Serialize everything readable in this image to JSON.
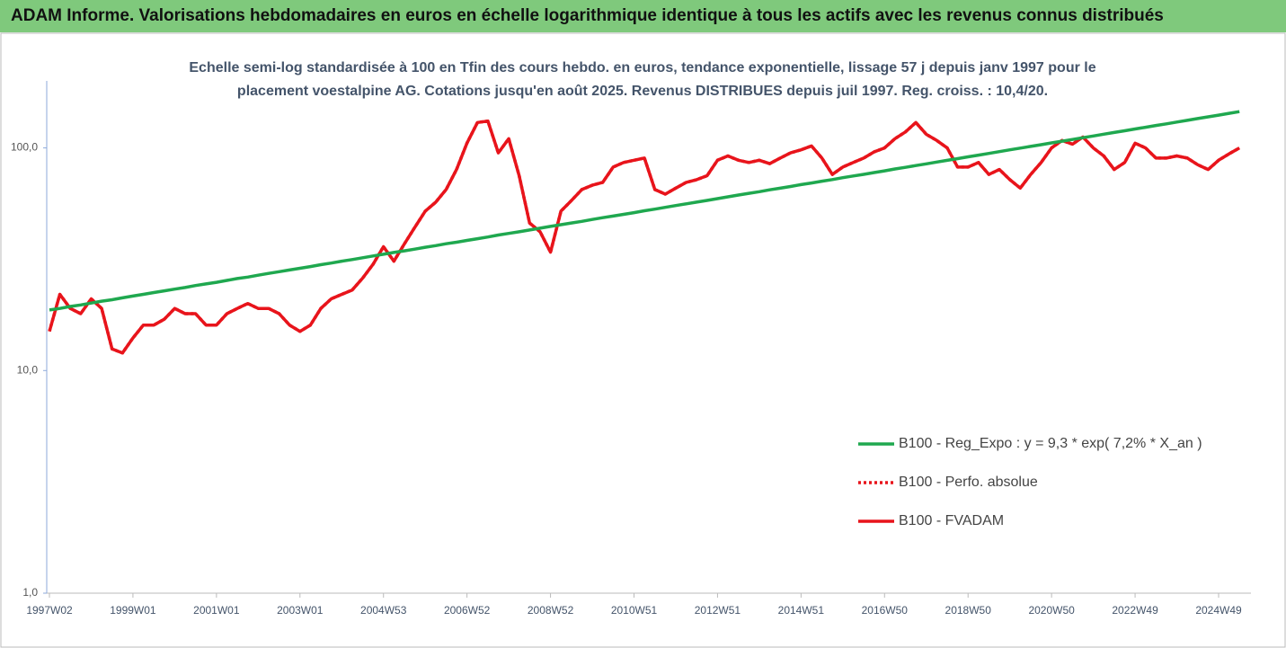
{
  "chart_data": {
    "type": "line",
    "title": "ADAM Informe. Valorisations hebdomadaires en euros en échelle logarithmique identique à tous les actifs avec les revenus connus distribués",
    "subtitle": [
      "Echelle semi-log standardisée à 100 en Tfin des cours hebdo. en euros, tendance exponentielle, lissage 57 j depuis janv 1997 pour le",
      "placement voestalpine AG. Cotations jusqu'en août 2025. Revenus DISTRIBUES depuis juil 1997. Reg. croiss. : 10,4/20."
    ],
    "log_scale": true,
    "grid": false,
    "legend": "right",
    "ylim": [
      1,
      200
    ],
    "yticks": [
      {
        "value": 1,
        "label": "1,0"
      },
      {
        "value": 10,
        "label": "10,0"
      },
      {
        "value": 100,
        "label": "100,0"
      }
    ],
    "categories": [
      "1997W02",
      null,
      null,
      null,
      null,
      null,
      null,
      null,
      "1999W01",
      null,
      null,
      null,
      null,
      null,
      null,
      null,
      "2001W01",
      null,
      null,
      null,
      null,
      null,
      null,
      null,
      "2003W01",
      null,
      null,
      null,
      null,
      null,
      null,
      null,
      "2004W53",
      null,
      null,
      null,
      null,
      null,
      null,
      null,
      "2006W52",
      null,
      null,
      null,
      null,
      null,
      null,
      null,
      "2008W52",
      null,
      null,
      null,
      null,
      null,
      null,
      null,
      "2010W51",
      null,
      null,
      null,
      null,
      null,
      null,
      null,
      "2012W51",
      null,
      null,
      null,
      null,
      null,
      null,
      null,
      "2014W51",
      null,
      null,
      null,
      null,
      null,
      null,
      null,
      "2016W50",
      null,
      null,
      null,
      null,
      null,
      null,
      null,
      "2018W50",
      null,
      null,
      null,
      null,
      null,
      null,
      null,
      "2020W50",
      null,
      null,
      null,
      null,
      null,
      null,
      null,
      "2022W49",
      null,
      null,
      null,
      null,
      null,
      null,
      null,
      "2024W49",
      null,
      null
    ],
    "series": [
      {
        "name": "B100 - Reg_Expo : y = 9,3 * exp( 7,2% *  X_an )",
        "color": "#1fa84f",
        "dash": "solid",
        "values": [
          18.7,
          19.0,
          19.4,
          19.7,
          20.1,
          20.5,
          20.8,
          21.2,
          21.6,
          22.0,
          22.4,
          22.8,
          23.2,
          23.6,
          24.1,
          24.5,
          24.9,
          25.4,
          25.9,
          26.3,
          26.8,
          27.3,
          27.8,
          28.3,
          28.8,
          29.3,
          29.9,
          30.4,
          31.0,
          31.5,
          32.1,
          32.7,
          33.3,
          33.9,
          34.5,
          35.1,
          35.8,
          36.4,
          37.1,
          37.7,
          38.4,
          39.1,
          39.8,
          40.6,
          41.3,
          42.0,
          42.8,
          43.6,
          44.4,
          45.2,
          46.0,
          46.8,
          47.7,
          48.6,
          49.4,
          50.3,
          51.2,
          52.2,
          53.1,
          54.1,
          55.1,
          56.1,
          57.1,
          58.1,
          59.2,
          60.3,
          61.4,
          62.5,
          63.6,
          64.8,
          65.9,
          67.1,
          68.4,
          69.6,
          70.9,
          72.1,
          73.5,
          74.8,
          76.1,
          77.5,
          78.9,
          80.4,
          81.8,
          83.3,
          84.8,
          86.4,
          87.9,
          89.5,
          91.2,
          92.8,
          94.5,
          96.2,
          98.0,
          99.8,
          101.6,
          103.4,
          105.3,
          107.2,
          109.1,
          111.1,
          113.1,
          115.2,
          117.3,
          119.4,
          121.6,
          123.8,
          126.1,
          128.3,
          130.7,
          133.0,
          135.5,
          137.9,
          140.4,
          143.0,
          145.6
        ]
      },
      {
        "name": "B100 - Perfo. absolue",
        "color": "#e8141b",
        "dash": "dotted",
        "values": [
          15,
          22,
          19,
          18,
          21,
          19,
          12.5,
          12,
          14,
          16,
          16,
          17,
          19,
          18,
          18,
          16,
          16,
          18,
          19,
          20,
          19,
          19,
          18,
          16,
          15,
          16,
          19,
          21,
          22,
          23,
          26,
          30,
          36,
          31,
          37,
          44,
          52,
          57,
          65,
          80,
          105,
          130,
          132,
          95,
          110,
          75,
          46,
          42,
          34,
          52,
          58,
          65,
          68,
          70,
          82,
          86,
          88,
          90,
          65,
          62,
          66,
          70,
          72,
          75,
          88,
          92,
          88,
          86,
          88,
          85,
          90,
          95,
          98,
          102,
          90,
          76,
          82,
          86,
          90,
          96,
          100,
          110,
          118,
          130,
          115,
          108,
          100,
          82,
          82,
          86,
          76,
          80,
          72,
          66,
          76,
          86,
          100,
          108,
          104,
          112,
          100,
          92,
          80,
          86,
          105,
          100,
          90,
          90,
          92,
          90,
          84,
          80,
          88,
          94,
          100
        ]
      },
      {
        "name": "B100 - FVADAM",
        "color": "#e8141b",
        "dash": "solid",
        "values": [
          15,
          22,
          19,
          18,
          21,
          19,
          12.5,
          12,
          14,
          16,
          16,
          17,
          19,
          18,
          18,
          16,
          16,
          18,
          19,
          20,
          19,
          19,
          18,
          16,
          15,
          16,
          19,
          21,
          22,
          23,
          26,
          30,
          36,
          31,
          37,
          44,
          52,
          57,
          65,
          80,
          105,
          130,
          132,
          95,
          110,
          75,
          46,
          42,
          34,
          52,
          58,
          65,
          68,
          70,
          82,
          86,
          88,
          90,
          65,
          62,
          66,
          70,
          72,
          75,
          88,
          92,
          88,
          86,
          88,
          85,
          90,
          95,
          98,
          102,
          90,
          76,
          82,
          86,
          90,
          96,
          100,
          110,
          118,
          130,
          115,
          108,
          100,
          82,
          82,
          86,
          76,
          80,
          72,
          66,
          76,
          86,
          100,
          108,
          104,
          112,
          100,
          92,
          80,
          86,
          105,
          100,
          90,
          90,
          92,
          90,
          84,
          80,
          88,
          94,
          100
        ]
      }
    ]
  }
}
